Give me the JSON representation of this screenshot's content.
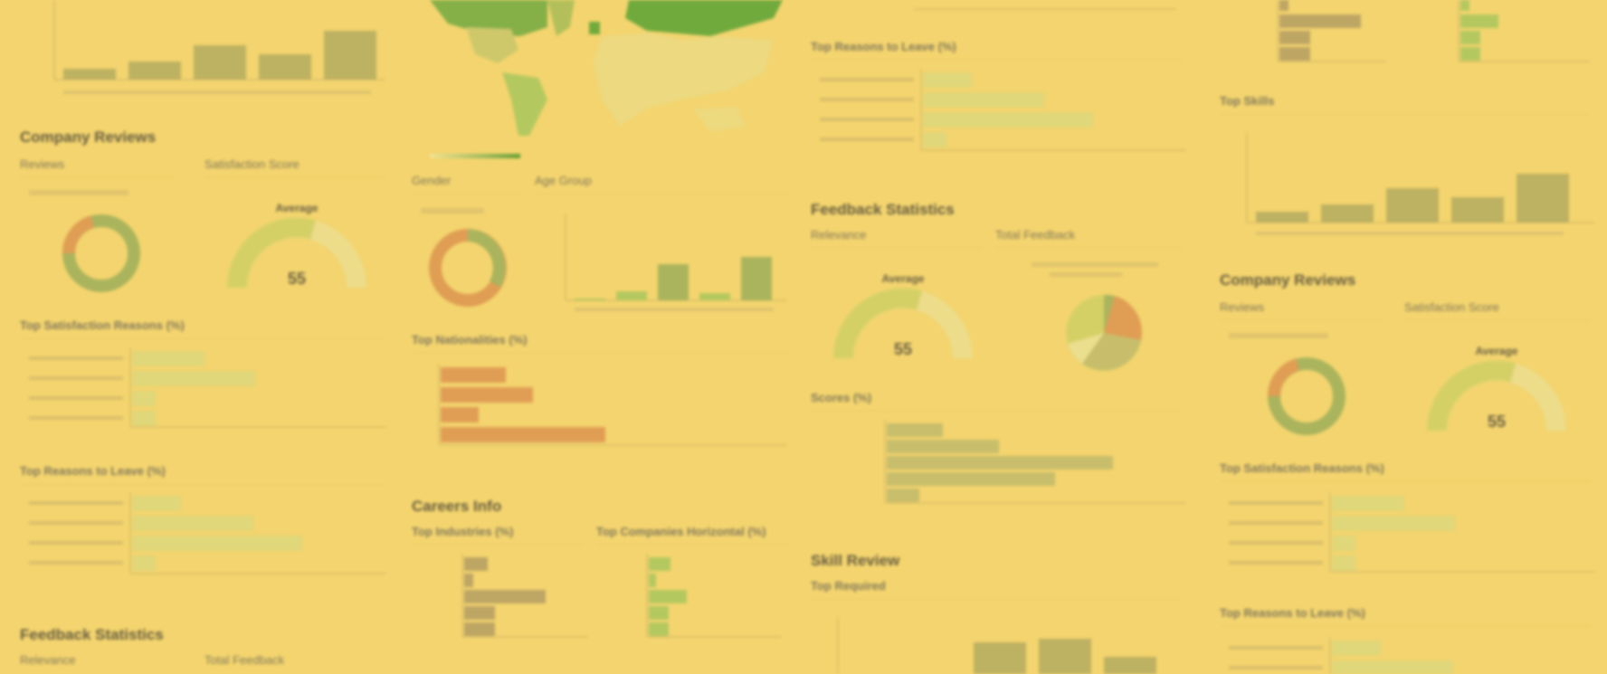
{
  "colors": {
    "background": "#f4d56e",
    "bar_olive": "#a8a45e",
    "bar_light": "#d8d87e",
    "bar_orange": "#d8894a",
    "bar_brown": "#a89360",
    "bar_green": "#9cc45a",
    "map_green": "#3e9a2a",
    "map_light": "#e8dc8a",
    "gauge_fill": "#c9cf63",
    "gauge_track": "#eadf94",
    "donut_green": "#8ea856",
    "donut_orange": "#d8894a"
  },
  "labels": {
    "company_reviews": "Company Reviews",
    "reviews": "Reviews",
    "satisfaction_score": "Satisfaction Score",
    "top_satisfaction_reasons": "Top Satisfaction Reasons (%)",
    "top_reasons_to_leave": "Top Reasons to Leave (%)",
    "feedback_statistics": "Feedback Statistics",
    "relevance": "Relevance",
    "total_feedback": "Total Feedback",
    "gender": "Gender",
    "age_group": "Age Group",
    "top_nationalities": "Top Nationalities (%)",
    "careers_info": "Careers Info",
    "top_industries": "Top Industries (%)",
    "top_companies_horizontal": "Top Companies Horizontal (%)",
    "scores": "Scores (%)",
    "skill_review": "Skill Review",
    "top_required": "Top Required",
    "top_skills": "Top Skills",
    "average": "Average",
    "gauge_value": "55"
  }
}
